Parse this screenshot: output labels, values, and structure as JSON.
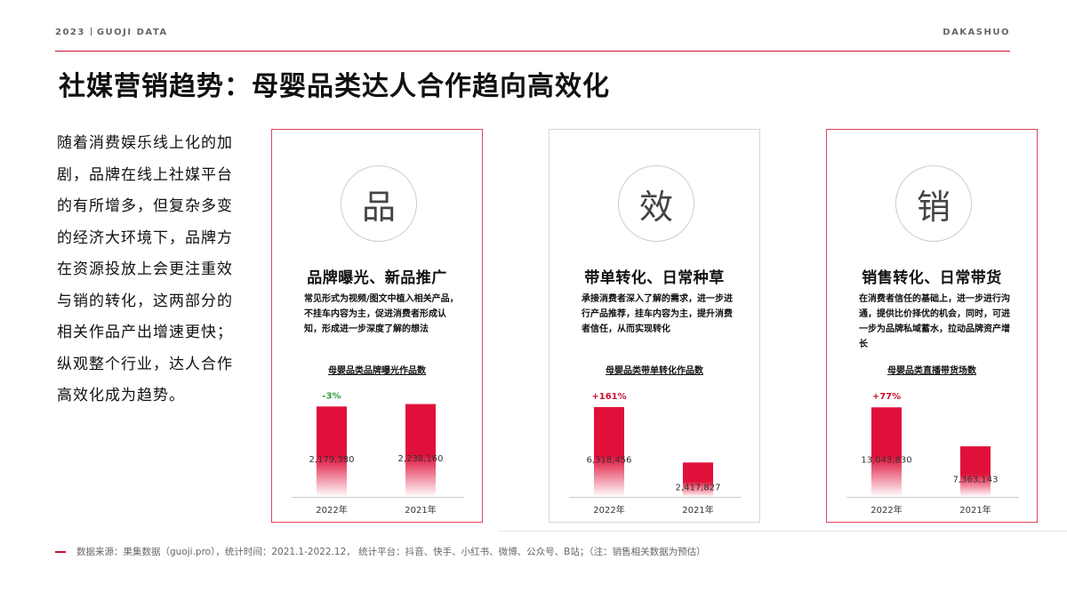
{
  "header": {
    "year": "2023",
    "brand": "GUOJI DATA",
    "right": "DAKASHUO"
  },
  "title": "社媒营销趋势：母婴品类达人合作趋向高效化",
  "left_text": "随着消费娱乐线上化的加剧，品牌在线上社媒平台的有所增多，但复杂多变的经济大环境下，品牌方在资源投放上会更注重效与销的转化，这两部分的相关作品产出增速更快；纵观整个行业，达人合作高效化成为趋势。",
  "cards": [
    {
      "char": "品",
      "title": "品牌曝光、新品推广",
      "desc": "常见形式为视频/图文中植入相关产品，不挂车内容为主，促进消费者形成认知，形成进一步深度了解的想法",
      "chart_title": "母婴品类品牌曝光作品数"
    },
    {
      "char": "效",
      "title": "带单转化、日常种草",
      "desc": "承接消费者深入了解的需求，进一步进行产品推荐，挂车内容为主，提升消费者信任，从而实现转化",
      "chart_title": "母婴品类带单转化作品数"
    },
    {
      "char": "销",
      "title": "销售转化、日常带货",
      "desc": "在消费者信任的基础上，进一步进行沟通，提供比价择优的机会，同时，可进一步为品牌私域蓄水，拉动品牌资产增长",
      "chart_title": "母婴品类直播带货场数"
    }
  ],
  "chart_data": [
    {
      "type": "bar",
      "title": "母婴品类品牌曝光作品数",
      "categories": [
        "2022年",
        "2021年"
      ],
      "values": [
        2179380,
        2238160
      ],
      "value_labels": [
        "2,179,380",
        "2,238,160"
      ],
      "change_label": "-3%",
      "change_color": "#2e9e3e",
      "ylim": [
        0,
        2400000
      ]
    },
    {
      "type": "bar",
      "title": "母婴品类带单转化作品数",
      "categories": [
        "2022年",
        "2021年"
      ],
      "values": [
        6318456,
        2417827
      ],
      "value_labels": [
        "6,318,456",
        "2,417,827"
      ],
      "change_label": "+161%",
      "change_color": "#c8102e",
      "ylim": [
        0,
        7000000
      ]
    },
    {
      "type": "bar",
      "title": "母婴品类直播带货场数",
      "categories": [
        "2022年",
        "2021年"
      ],
      "values": [
        13043830,
        7363143
      ],
      "value_labels": [
        "13,043,830",
        "7,363,143"
      ],
      "change_label": "+77%",
      "change_color": "#c8102e",
      "ylim": [
        0,
        14500000
      ]
    }
  ],
  "footer": "数据来源：果集数据（guoji.pro），统计时间：2021.1-2022.12，  统计平台：抖音、快手、小红书、微博、公众号、B站；（注：销售相关数据为预估）",
  "colors": {
    "accent": "#c8102e",
    "bar_top": "#e0103a",
    "bar_bottom": "#ffffff"
  }
}
